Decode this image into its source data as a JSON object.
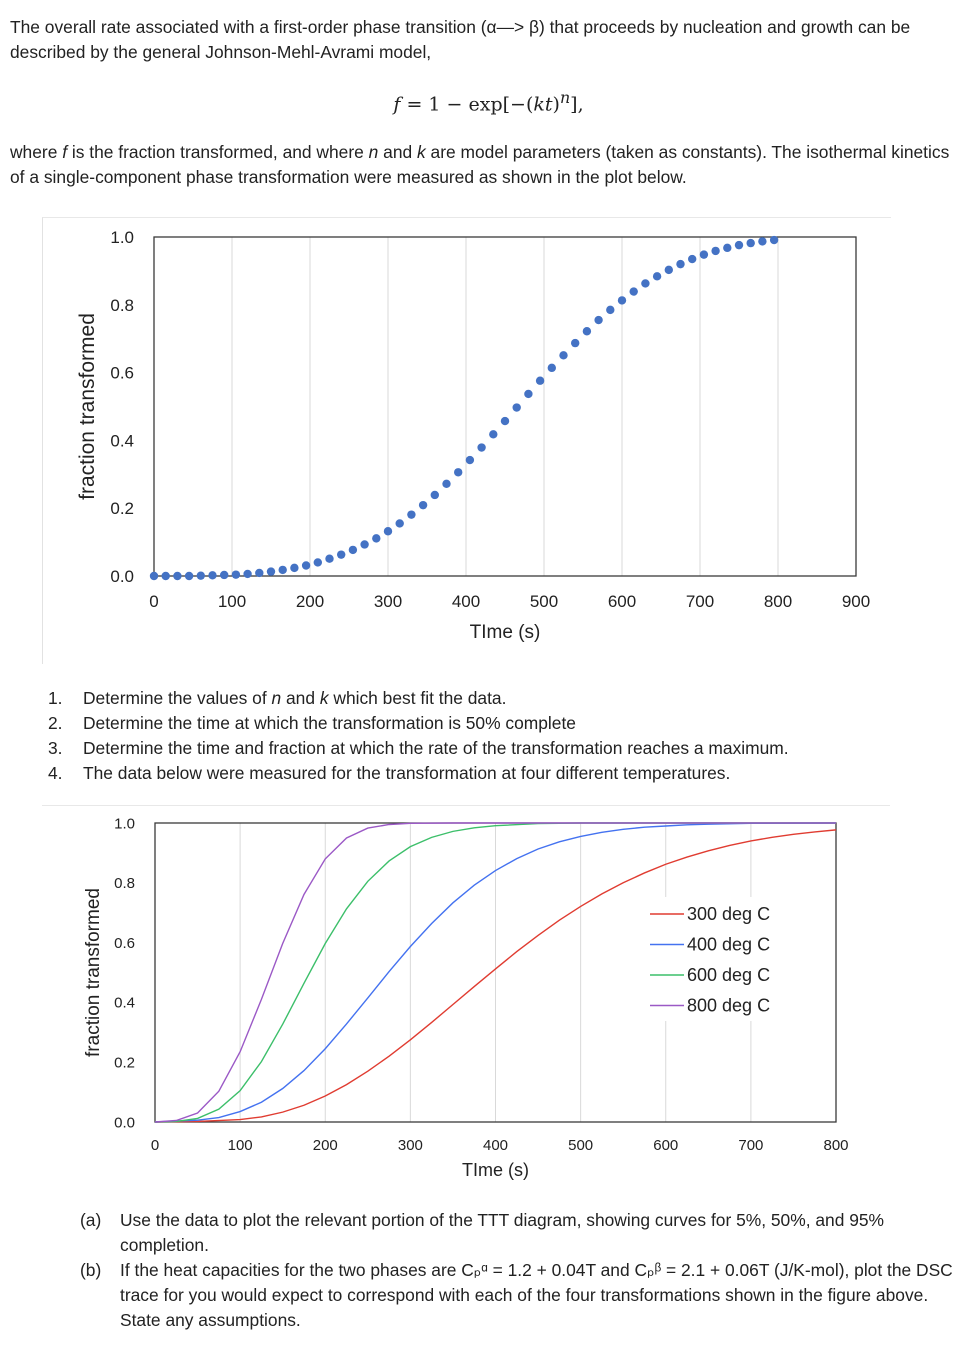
{
  "intro": "The overall rate associated with a first-order phase transition (α—> β) that proceeds by nucleation and growth can be described by the general Johnson-Mehl-Avrami model,",
  "equation": {
    "lhs": "f",
    "rhs_prefix": "= 1 − exp[−(",
    "kt": "kt",
    "rhs_suffix": ")",
    "exponent": "n",
    "tail": "],"
  },
  "where": {
    "p1": "where ",
    "f": "f",
    "p2": " is the fraction transformed, and where ",
    "n": "n",
    "p3": " and ",
    "k": "k",
    "p4": " are model parameters (taken as constants). The isothermal kinetics of a single-component phase transformation were measured as shown in the plot below."
  },
  "questions": [
    {
      "num": "1.",
      "parts": [
        "Determine the values of ",
        "n",
        " and ",
        "k",
        " which best fit the data."
      ]
    },
    {
      "num": "2.",
      "text": "Determine the time at which the transformation is 50% complete"
    },
    {
      "num": "3.",
      "text": "Determine the time and fraction at which the rate of the transformation reaches a maximum."
    },
    {
      "num": "4.",
      "text": "The data below were measured for the transformation at four different temperatures."
    }
  ],
  "subquestions": [
    {
      "num": "(a)",
      "text": "Use the data to plot the relevant portion of the TTT diagram, showing curves for 5%, 50%, and 95% completion."
    },
    {
      "num": "(b)",
      "text": "If the heat capacities for the two phases are Cₚᵅ = 1.2 + 0.04T and Cₚᵝ = 2.1 + 0.06T (J/K-mol), plot the DSC trace for you would expect to correspond with each of the four transformations shown in the figure above.  State any assumptions."
    }
  ],
  "chart_data": [
    {
      "type": "scatter",
      "xlabel": "TIme (s)",
      "ylabel": "fraction transformed",
      "xlim": [
        0,
        900
      ],
      "ylim": [
        0,
        1
      ],
      "xticks": [
        "0",
        "100",
        "200",
        "300",
        "400",
        "500",
        "600",
        "700",
        "800",
        "900"
      ],
      "yticks": [
        "0.0",
        "0.2",
        "0.4",
        "0.6",
        "0.8",
        "1.0"
      ],
      "grid": "vertical",
      "marker_color": "#4472C4",
      "x": [
        0,
        15,
        30,
        45,
        60,
        75,
        90,
        105,
        120,
        135,
        150,
        165,
        180,
        195,
        210,
        225,
        240,
        255,
        270,
        285,
        300,
        315,
        330,
        345,
        360,
        375,
        390,
        405,
        420,
        435,
        450,
        465,
        480,
        495,
        510,
        525,
        540,
        555,
        570,
        585,
        600,
        615,
        630,
        645,
        660,
        675,
        690,
        705,
        720,
        735,
        750,
        765,
        780,
        795
      ],
      "y": [
        0.0,
        0.0,
        0.0,
        0.0,
        0.001,
        0.002,
        0.003,
        0.004,
        0.006,
        0.009,
        0.013,
        0.018,
        0.024,
        0.031,
        0.04,
        0.051,
        0.063,
        0.077,
        0.093,
        0.111,
        0.132,
        0.155,
        0.181,
        0.209,
        0.239,
        0.272,
        0.306,
        0.342,
        0.379,
        0.418,
        0.457,
        0.497,
        0.537,
        0.576,
        0.614,
        0.651,
        0.687,
        0.722,
        0.755,
        0.785,
        0.813,
        0.839,
        0.863,
        0.884,
        0.903,
        0.92,
        0.935,
        0.948,
        0.959,
        0.968,
        0.976,
        0.982,
        0.987,
        0.991
      ]
    },
    {
      "type": "line",
      "xlabel": "TIme (s)",
      "ylabel": "fraction transformed",
      "xlim": [
        0,
        800
      ],
      "ylim": [
        0,
        1
      ],
      "xticks": [
        "0",
        "100",
        "200",
        "300",
        "400",
        "500",
        "600",
        "700",
        "800"
      ],
      "yticks": [
        "0.0",
        "0.2",
        "0.4",
        "0.6",
        "0.8",
        "1.0"
      ],
      "grid": "vertical",
      "legend": "right",
      "series": [
        {
          "name": "300 deg C",
          "color": "#E03C31",
          "x": [
            0,
            50,
            100,
            125,
            150,
            175,
            200,
            225,
            250,
            275,
            300,
            325,
            350,
            375,
            400,
            425,
            450,
            475,
            500,
            525,
            550,
            575,
            600,
            625,
            650,
            675,
            700,
            725,
            750,
            775,
            800
          ],
          "y": [
            0,
            0.002,
            0.008,
            0.017,
            0.033,
            0.056,
            0.087,
            0.125,
            0.17,
            0.22,
            0.275,
            0.333,
            0.393,
            0.453,
            0.512,
            0.57,
            0.624,
            0.675,
            0.721,
            0.763,
            0.8,
            0.833,
            0.862,
            0.886,
            0.907,
            0.925,
            0.94,
            0.952,
            0.962,
            0.97,
            0.977
          ]
        },
        {
          "name": "400 deg C",
          "color": "#4472F0",
          "x": [
            0,
            50,
            75,
            100,
            125,
            150,
            175,
            200,
            225,
            250,
            275,
            300,
            325,
            350,
            375,
            400,
            425,
            450,
            475,
            500,
            525,
            550,
            575,
            600,
            625,
            650,
            700,
            800
          ],
          "y": [
            0,
            0.006,
            0.015,
            0.035,
            0.066,
            0.112,
            0.172,
            0.245,
            0.328,
            0.415,
            0.503,
            0.587,
            0.664,
            0.733,
            0.792,
            0.841,
            0.881,
            0.913,
            0.937,
            0.955,
            0.969,
            0.979,
            0.986,
            0.99,
            0.994,
            0.996,
            0.999,
            1.0
          ]
        },
        {
          "name": "600 deg C",
          "color": "#3CBF6A",
          "x": [
            0,
            25,
            50,
            75,
            100,
            125,
            150,
            175,
            200,
            225,
            250,
            275,
            300,
            325,
            350,
            375,
            400,
            450,
            500,
            800
          ],
          "y": [
            0,
            0.002,
            0.012,
            0.043,
            0.105,
            0.202,
            0.327,
            0.464,
            0.597,
            0.713,
            0.805,
            0.873,
            0.921,
            0.952,
            0.972,
            0.984,
            0.991,
            0.998,
            1.0,
            1.0
          ]
        },
        {
          "name": "800 deg C",
          "color": "#9B59C6",
          "x": [
            0,
            25,
            50,
            75,
            100,
            125,
            150,
            175,
            200,
            225,
            250,
            275,
            300,
            350,
            800
          ],
          "y": [
            0,
            0.005,
            0.03,
            0.103,
            0.235,
            0.41,
            0.597,
            0.761,
            0.88,
            0.95,
            0.983,
            0.995,
            0.999,
            1.0,
            1.0
          ]
        }
      ]
    }
  ]
}
